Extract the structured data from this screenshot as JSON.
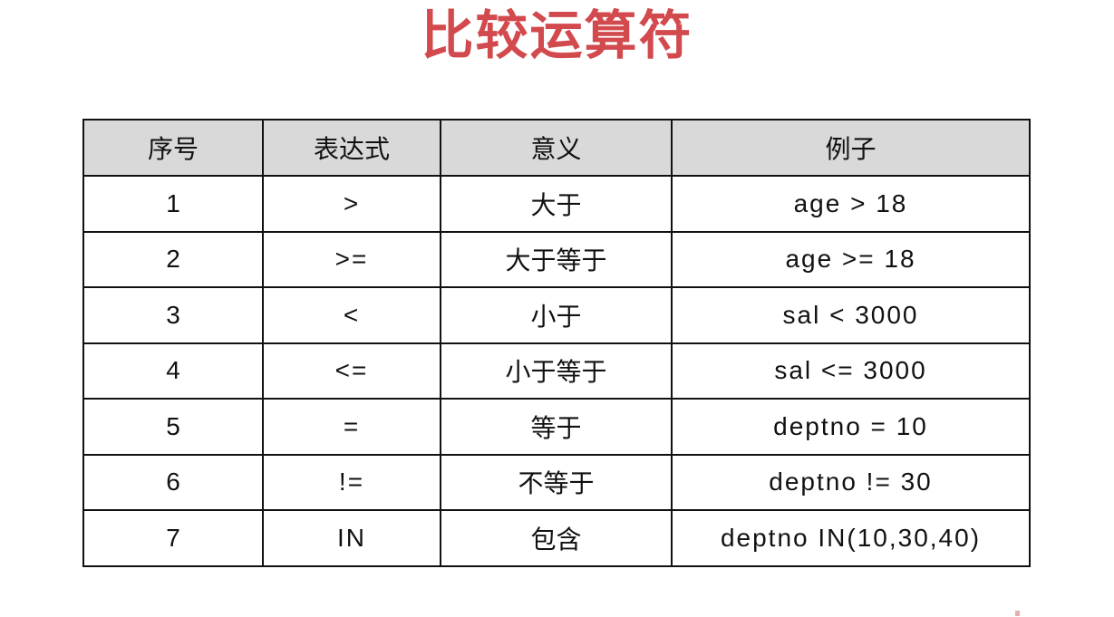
{
  "title": {
    "text": "比较运算符",
    "color": "#d2494e"
  },
  "table": {
    "header_bg": "#d9d9d9",
    "border_color": "#111111",
    "headers": [
      "序号",
      "表达式",
      "意义",
      "例子"
    ],
    "rows": [
      {
        "no": "1",
        "expr": ">",
        "meaning": "大于",
        "example": "age > 18"
      },
      {
        "no": "2",
        "expr": ">=",
        "meaning": "大于等于",
        "example": "age >= 18"
      },
      {
        "no": "3",
        "expr": "<",
        "meaning": "小于",
        "example": "sal < 3000"
      },
      {
        "no": "4",
        "expr": "<=",
        "meaning": "小于等于",
        "example": "sal <= 3000"
      },
      {
        "no": "5",
        "expr": "=",
        "meaning": "等于",
        "example": "deptno = 10"
      },
      {
        "no": "6",
        "expr": "!=",
        "meaning": "不等于",
        "example": "deptno != 30"
      },
      {
        "no": "7",
        "expr": "IN",
        "meaning": "包含",
        "example": "deptno IN(10,30,40)"
      }
    ]
  }
}
